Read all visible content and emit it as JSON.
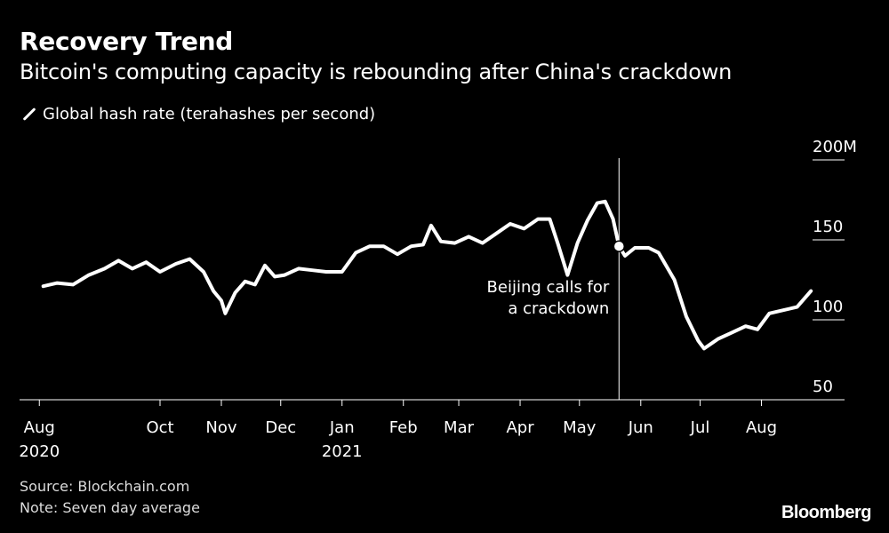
{
  "title": "Recovery Trend",
  "subtitle": "Bitcoin's computing capacity is rebounding after China's crackdown",
  "legend_label": "Global hash rate (terahashes per second)",
  "source": "Source: Blockchain.com",
  "note": "Note: Seven day average",
  "brand": "Bloomberg",
  "colors": {
    "background": "#000000",
    "line": "#ffffff",
    "text": "#ffffff"
  },
  "chart_data": {
    "type": "line",
    "xlabel": "",
    "ylabel": "",
    "ylim": [
      50,
      200
    ],
    "y_ticks": [
      {
        "value": 50,
        "label": "50"
      },
      {
        "value": 100,
        "label": "100"
      },
      {
        "value": 150,
        "label": "150"
      },
      {
        "value": 200,
        "label": "200M"
      }
    ],
    "x_ticks": [
      {
        "date": "2020-08-01",
        "label": "Aug",
        "sublabel": "2020"
      },
      {
        "date": "2020-10-01",
        "label": "Oct",
        "sublabel": ""
      },
      {
        "date": "2020-11-01",
        "label": "Nov",
        "sublabel": ""
      },
      {
        "date": "2020-12-01",
        "label": "Dec",
        "sublabel": ""
      },
      {
        "date": "2021-01-01",
        "label": "Jan",
        "sublabel": "2021"
      },
      {
        "date": "2021-02-01",
        "label": "Feb",
        "sublabel": ""
      },
      {
        "date": "2021-03-01",
        "label": "Mar",
        "sublabel": ""
      },
      {
        "date": "2021-04-01",
        "label": "Apr",
        "sublabel": ""
      },
      {
        "date": "2021-05-01",
        "label": "May",
        "sublabel": ""
      },
      {
        "date": "2021-06-01",
        "label": "Jun",
        "sublabel": ""
      },
      {
        "date": "2021-07-01",
        "label": "Jul",
        "sublabel": ""
      },
      {
        "date": "2021-08-01",
        "label": "Aug",
        "sublabel": ""
      }
    ],
    "grid": false,
    "series": [
      {
        "color": "#ffffff",
        "points": [
          [
            "2020-08-03",
            121
          ],
          [
            "2020-08-10",
            123
          ],
          [
            "2020-08-18",
            122
          ],
          [
            "2020-08-26",
            128
          ],
          [
            "2020-09-03",
            132
          ],
          [
            "2020-09-10",
            137
          ],
          [
            "2020-09-17",
            132
          ],
          [
            "2020-09-24",
            136
          ],
          [
            "2020-10-01",
            130
          ],
          [
            "2020-10-09",
            135
          ],
          [
            "2020-10-16",
            138
          ],
          [
            "2020-10-23",
            130
          ],
          [
            "2020-10-28",
            118
          ],
          [
            "2020-11-01",
            112
          ],
          [
            "2020-11-03",
            104
          ],
          [
            "2020-11-08",
            117
          ],
          [
            "2020-11-13",
            124
          ],
          [
            "2020-11-18",
            122
          ],
          [
            "2020-11-23",
            134
          ],
          [
            "2020-11-28",
            127
          ],
          [
            "2020-12-03",
            128
          ],
          [
            "2020-12-10",
            132
          ],
          [
            "2020-12-17",
            131
          ],
          [
            "2020-12-24",
            130
          ],
          [
            "2021-01-01",
            130
          ],
          [
            "2021-01-08",
            142
          ],
          [
            "2021-01-15",
            146
          ],
          [
            "2021-01-22",
            146
          ],
          [
            "2021-01-29",
            141
          ],
          [
            "2021-02-05",
            146
          ],
          [
            "2021-02-11",
            147
          ],
          [
            "2021-02-15",
            159
          ],
          [
            "2021-02-20",
            149
          ],
          [
            "2021-02-27",
            148
          ],
          [
            "2021-03-06",
            152
          ],
          [
            "2021-03-13",
            148
          ],
          [
            "2021-03-20",
            154
          ],
          [
            "2021-03-27",
            160
          ],
          [
            "2021-04-03",
            157
          ],
          [
            "2021-04-10",
            163
          ],
          [
            "2021-04-16",
            163
          ],
          [
            "2021-04-20",
            148
          ],
          [
            "2021-04-25",
            128
          ],
          [
            "2021-04-30",
            148
          ],
          [
            "2021-05-05",
            162
          ],
          [
            "2021-05-10",
            173
          ],
          [
            "2021-05-14",
            174
          ],
          [
            "2021-05-18",
            163
          ],
          [
            "2021-05-21",
            146
          ],
          [
            "2021-05-24",
            140
          ],
          [
            "2021-05-29",
            145
          ],
          [
            "2021-06-05",
            145
          ],
          [
            "2021-06-10",
            142
          ],
          [
            "2021-06-18",
            125
          ],
          [
            "2021-06-24",
            102
          ],
          [
            "2021-06-30",
            87
          ],
          [
            "2021-07-03",
            82
          ],
          [
            "2021-07-10",
            88
          ],
          [
            "2021-07-17",
            92
          ],
          [
            "2021-07-24",
            96
          ],
          [
            "2021-07-30",
            94
          ],
          [
            "2021-08-05",
            104
          ],
          [
            "2021-08-12",
            106
          ],
          [
            "2021-08-19",
            108
          ],
          [
            "2021-08-26",
            118
          ]
        ]
      }
    ],
    "annotations": [
      {
        "date": "2021-05-21",
        "lines": [
          "Beijing calls for",
          "a crackdown"
        ]
      }
    ]
  }
}
